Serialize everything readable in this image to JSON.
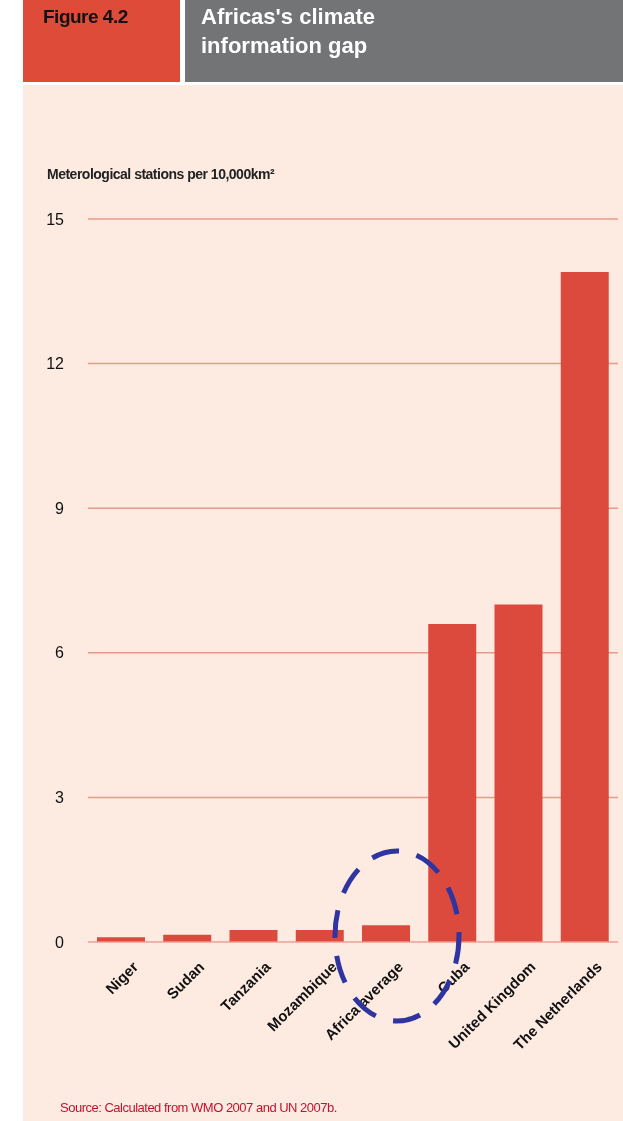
{
  "chart_data": {
    "type": "bar",
    "title": "Africas's climate information gap",
    "subtitle": "Figure 4.2",
    "ylabel": "Meterological stations per 10,000km²",
    "categories": [
      "Niger",
      "Sudan",
      "Tanzania",
      "Mozambique",
      "Africa average",
      "Cuba",
      "United Kingdom",
      "The Netherlands"
    ],
    "values": [
      0.1,
      0.15,
      0.25,
      0.25,
      0.35,
      6.6,
      7.0,
      13.9
    ],
    "color": "#db4a3c",
    "ylim": [
      0,
      15
    ],
    "yticks": [
      0,
      3,
      6,
      9,
      12,
      15
    ],
    "grid": "y",
    "annotations": [
      "Source: Calculated from WMO 2007 and UN 2007b."
    ]
  }
}
